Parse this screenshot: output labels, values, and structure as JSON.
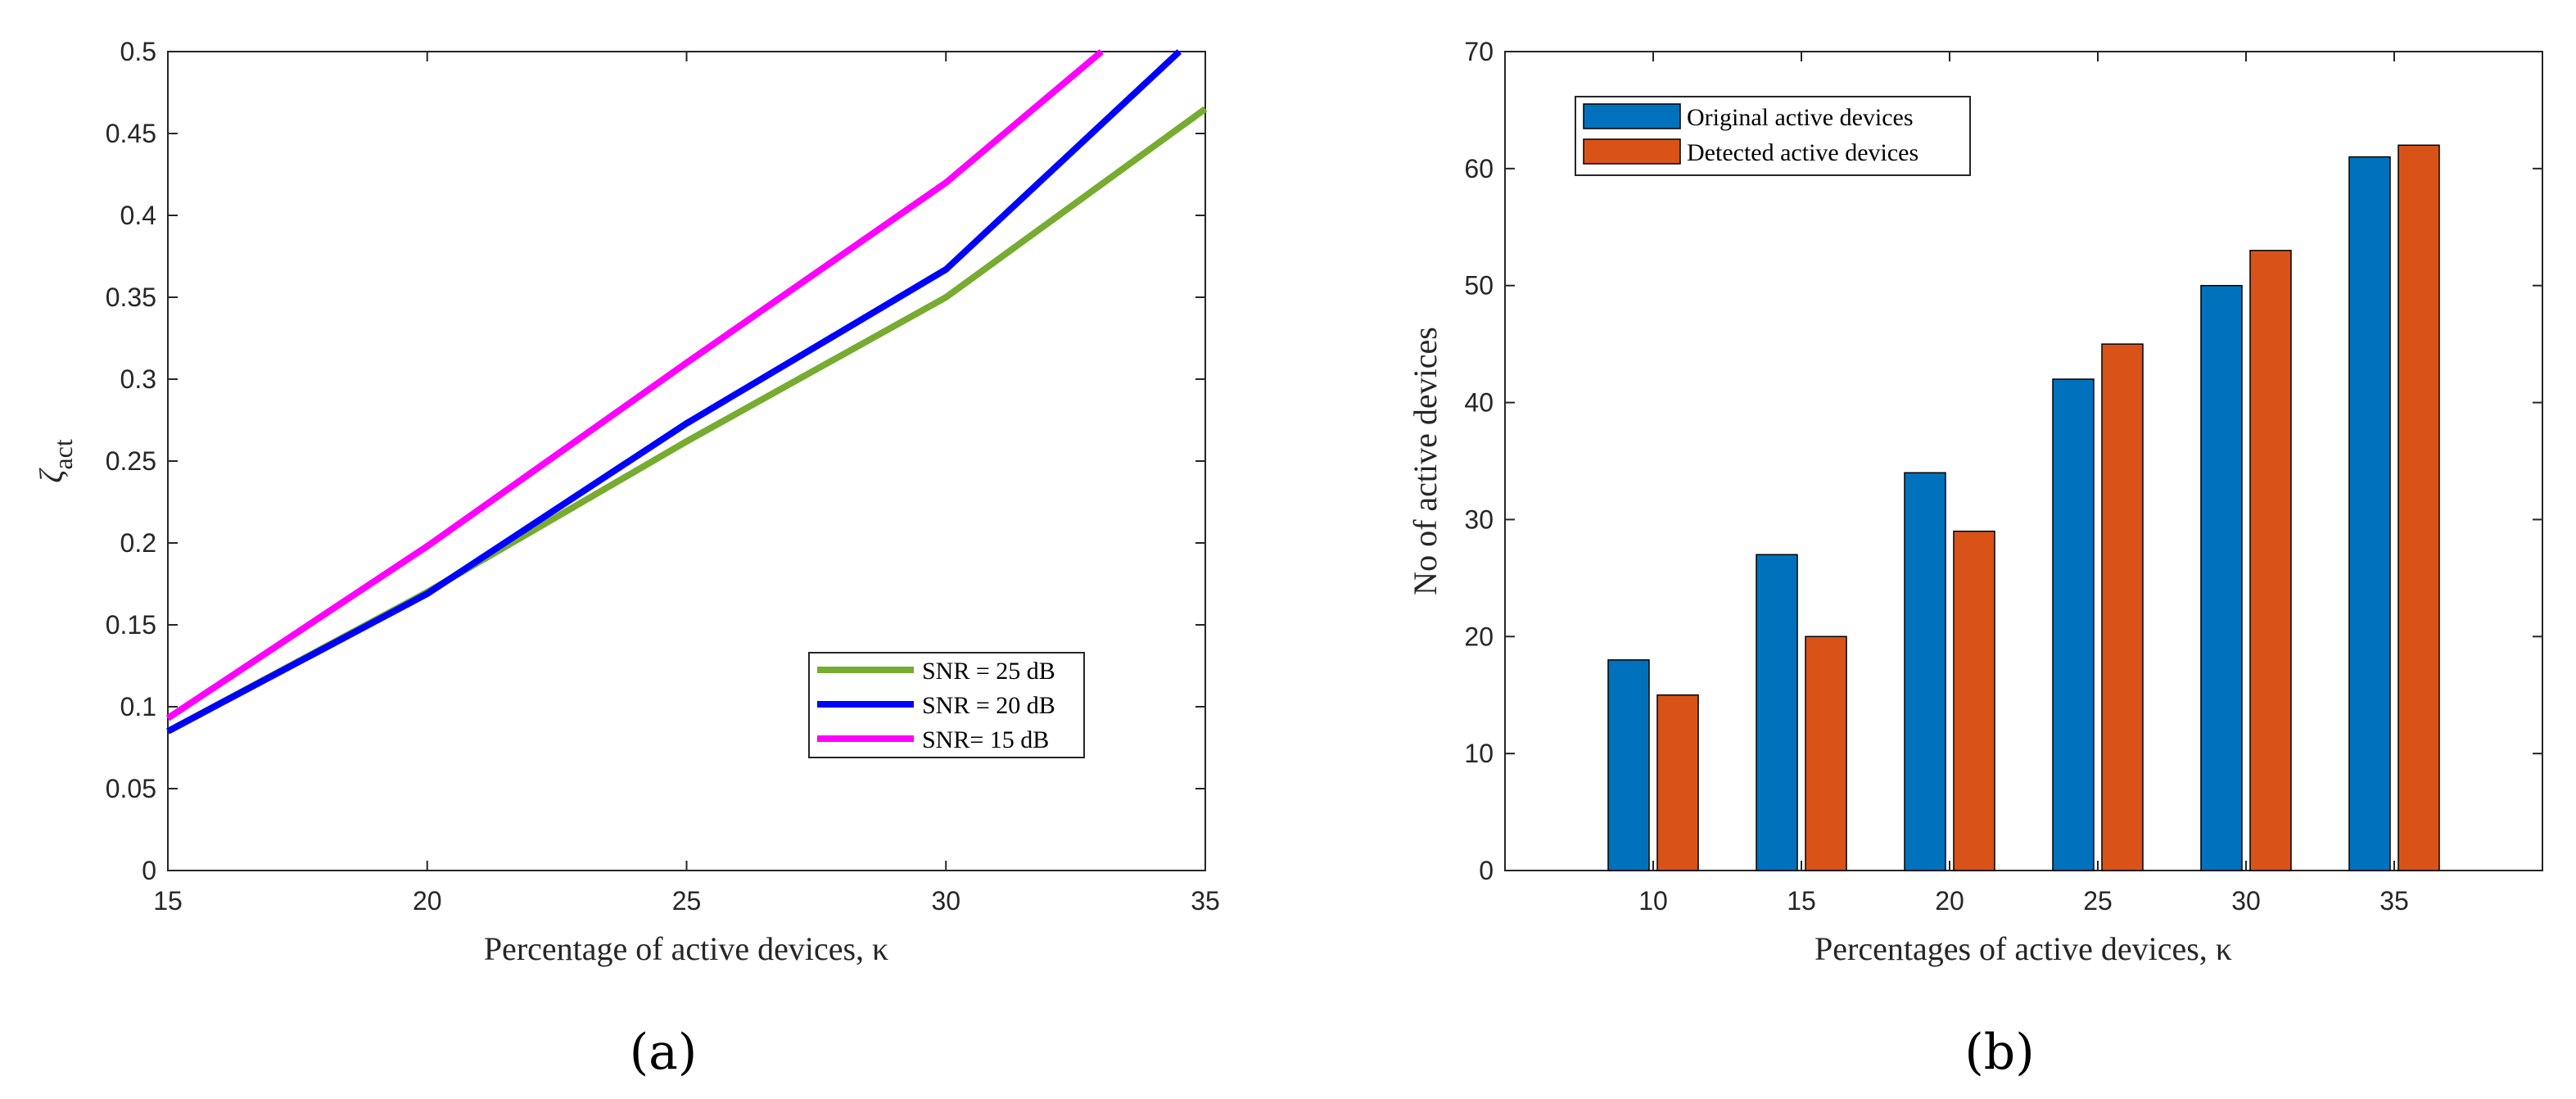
{
  "figure": {
    "panel_labels": [
      "(a)",
      "(b)"
    ]
  },
  "chart_data": [
    {
      "type": "line",
      "panel": "(a)",
      "title": "",
      "xlabel": "Percentage of active devices, κ",
      "ylabel": "ζact",
      "ylabel_main": "ζ",
      "ylabel_sub": "act",
      "xlim": [
        15,
        35
      ],
      "ylim": [
        0,
        0.5
      ],
      "xticks": [
        15,
        20,
        25,
        30,
        35
      ],
      "xtick_labels": [
        "15",
        "20",
        "25",
        "30",
        "35"
      ],
      "yticks": [
        0,
        0.05,
        0.1,
        0.15,
        0.2,
        0.25,
        0.3,
        0.35,
        0.4,
        0.45,
        0.5
      ],
      "ytick_labels": [
        "0",
        "0.05",
        "0.1",
        "0.15",
        "0.2",
        "0.25",
        "0.3",
        "0.35",
        "0.4",
        "0.45",
        "0.5"
      ],
      "grid": false,
      "legend_position": "lower-right",
      "series": [
        {
          "name": "SNR = 25 dB",
          "color": "#77AC30",
          "x": [
            15,
            20,
            25,
            30,
            35
          ],
          "y": [
            0.085,
            0.17,
            0.262,
            0.35,
            0.465
          ]
        },
        {
          "name": "SNR = 20 dB",
          "color": "#0000FF",
          "x": [
            15,
            20,
            25,
            30,
            34.5
          ],
          "y": [
            0.085,
            0.169,
            0.273,
            0.367,
            0.5
          ]
        },
        {
          "name": "SNR= 15 dB",
          "color": "#FF00FF",
          "x": [
            15,
            20,
            25,
            30,
            33
          ],
          "y": [
            0.093,
            0.198,
            0.31,
            0.42,
            0.5
          ]
        }
      ]
    },
    {
      "type": "bar",
      "panel": "(b)",
      "title": "",
      "xlabel": "Percentages of active devices, κ",
      "ylabel": "No of active devices",
      "categories": [
        "10",
        "15",
        "20",
        "25",
        "30",
        "35"
      ],
      "ylim": [
        0,
        70
      ],
      "yticks": [
        0,
        10,
        20,
        30,
        40,
        50,
        60,
        70
      ],
      "ytick_labels": [
        "0",
        "10",
        "20",
        "30",
        "40",
        "50",
        "60",
        "70"
      ],
      "grid": false,
      "legend_position": "top-left",
      "series": [
        {
          "name": "Original active devices",
          "color": "#0072BD",
          "values": [
            18,
            27,
            34,
            42,
            50,
            61
          ]
        },
        {
          "name": "Detected active devices",
          "color": "#D95319",
          "values": [
            15,
            20,
            29,
            45,
            53,
            62
          ]
        }
      ]
    }
  ]
}
